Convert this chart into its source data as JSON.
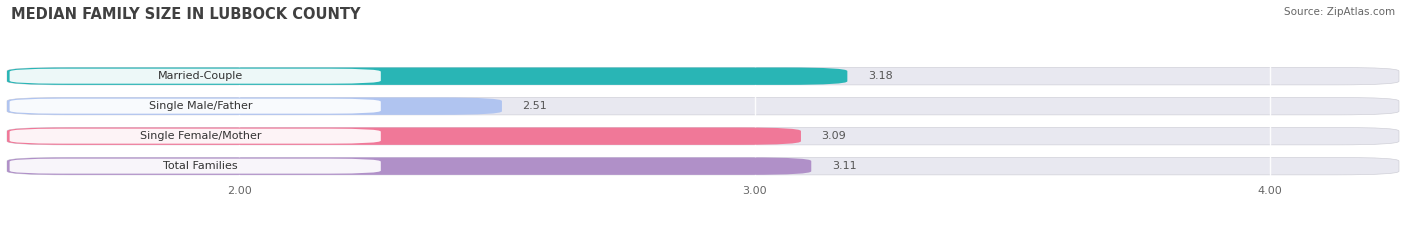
{
  "title": "MEDIAN FAMILY SIZE IN LUBBOCK COUNTY",
  "source_text": "Source: ZipAtlas.com",
  "categories": [
    "Married-Couple",
    "Single Male/Father",
    "Single Female/Mother",
    "Total Families"
  ],
  "values": [
    3.18,
    2.51,
    3.09,
    3.11
  ],
  "bar_colors": [
    "#29b5b5",
    "#b0c4f0",
    "#f07898",
    "#b090c8"
  ],
  "xlim_left": 1.55,
  "xlim_right": 4.25,
  "xstart": 1.55,
  "xticks": [
    2.0,
    3.0,
    4.0
  ],
  "xtick_labels": [
    "2.00",
    "3.00",
    "4.00"
  ],
  "background_color": "#ffffff",
  "bar_bg_color": "#e8e8f0",
  "label_bg_color": "#ffffff",
  "label_fontsize": 8.0,
  "value_fontsize": 8.0,
  "title_fontsize": 10.5,
  "source_fontsize": 7.5,
  "bar_height": 0.58,
  "bar_gap": 0.42
}
